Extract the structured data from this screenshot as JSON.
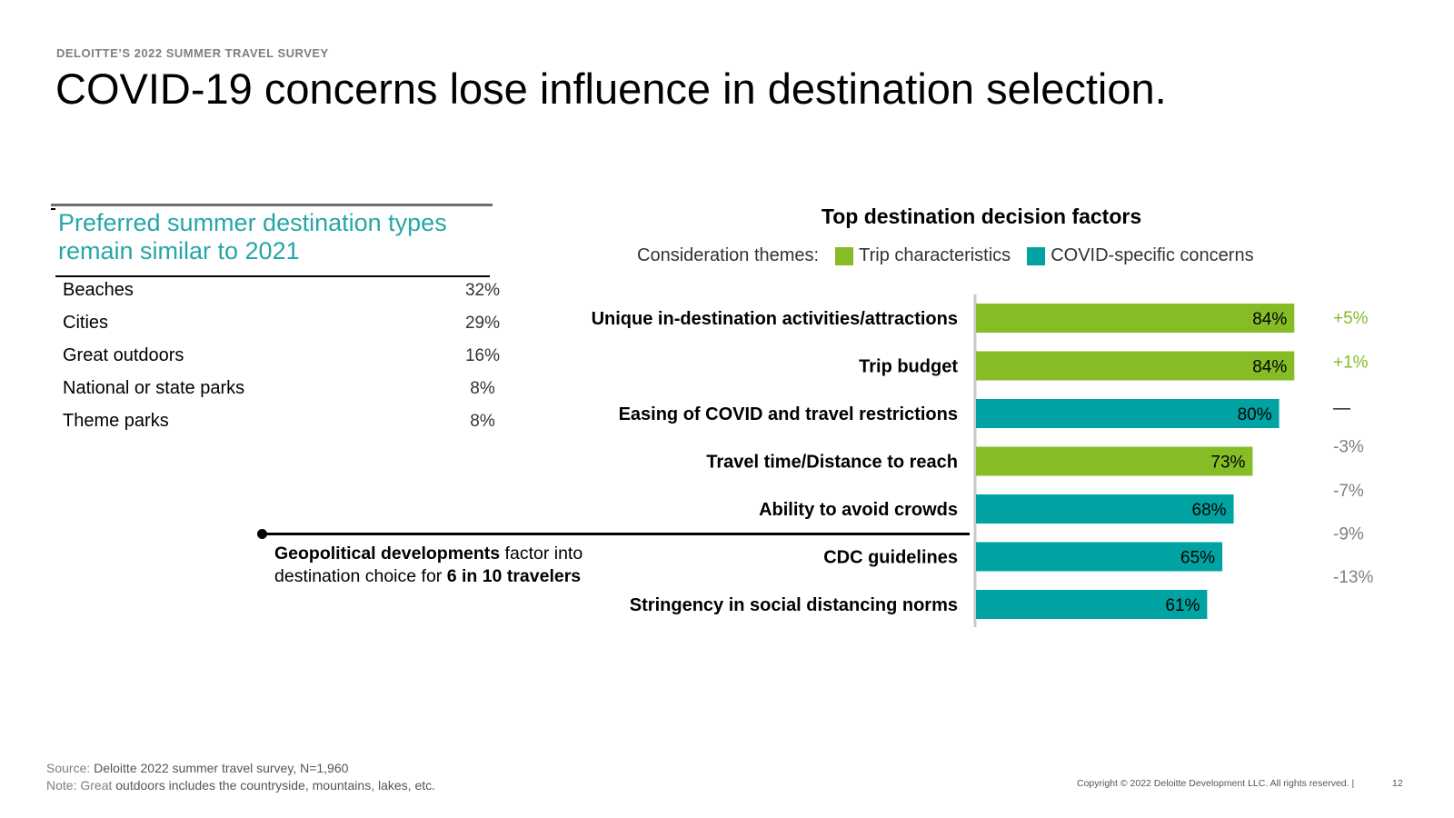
{
  "header": {
    "eyebrow": "DELOITTE’S 2022 SUMMER TRAVEL SURVEY",
    "title": "COVID-19 concerns lose influence in destination selection."
  },
  "destinations": {
    "heading": "Preferred summer destination types remain similar to 2021",
    "rows": [
      {
        "name": "Beaches",
        "value": "32%"
      },
      {
        "name": "Cities",
        "value": "29%"
      },
      {
        "name": "Great outdoors",
        "value": "16%"
      },
      {
        "name": "National or state parks",
        "value": "8%"
      },
      {
        "name": "Theme parks",
        "value": "8%"
      }
    ]
  },
  "callout": {
    "bold_1": "Geopolitical developments",
    "text_1": " factor into destination choice for ",
    "bold_2": "6 in 10 travelers"
  },
  "chart_data": {
    "type": "bar",
    "orientation": "horizontal",
    "title": "Top destination decision factors",
    "legend_prefix": "Consideration themes:",
    "legend": [
      {
        "name": "Trip characteristics",
        "color": "#86bc25"
      },
      {
        "name": "COVID-specific concerns",
        "color": "#00a3a1"
      }
    ],
    "categories": [
      "Unique in-destination activities/attractions",
      "Trip budget",
      "Easing of COVID and travel restrictions",
      "Travel time/Distance to reach",
      "Ability to avoid crowds",
      "CDC guidelines",
      "Stringency in social distancing norms"
    ],
    "values": [
      84,
      84,
      80,
      73,
      68,
      65,
      61
    ],
    "value_labels": [
      "84%",
      "84%",
      "80%",
      "73%",
      "68%",
      "65%",
      "61%"
    ],
    "themes": [
      "Trip characteristics",
      "Trip characteristics",
      "COVID-specific concerns",
      "Trip characteristics",
      "COVID-specific concerns",
      "COVID-specific concerns",
      "COVID-specific concerns"
    ],
    "changes": [
      "+5%",
      "+1%",
      "—",
      "-3%",
      "-7%",
      "-9%",
      "-13%"
    ],
    "change_colors": [
      "#86bc25",
      "#86bc25",
      "#000000",
      "#7f7f7f",
      "#7f7f7f",
      "#7f7f7f",
      "#7f7f7f"
    ]
  },
  "footer": {
    "source_key": "Source:",
    "source_text": " Deloitte 2022 summer travel survey, N=1,960",
    "note_key": "Note: Great",
    "note_text": " outdoors includes the countryside, mountains, lakes, etc.",
    "copyright": "Copyright © 2022 Deloitte Development LLC. All rights reserved.  |",
    "page_number": "12"
  }
}
